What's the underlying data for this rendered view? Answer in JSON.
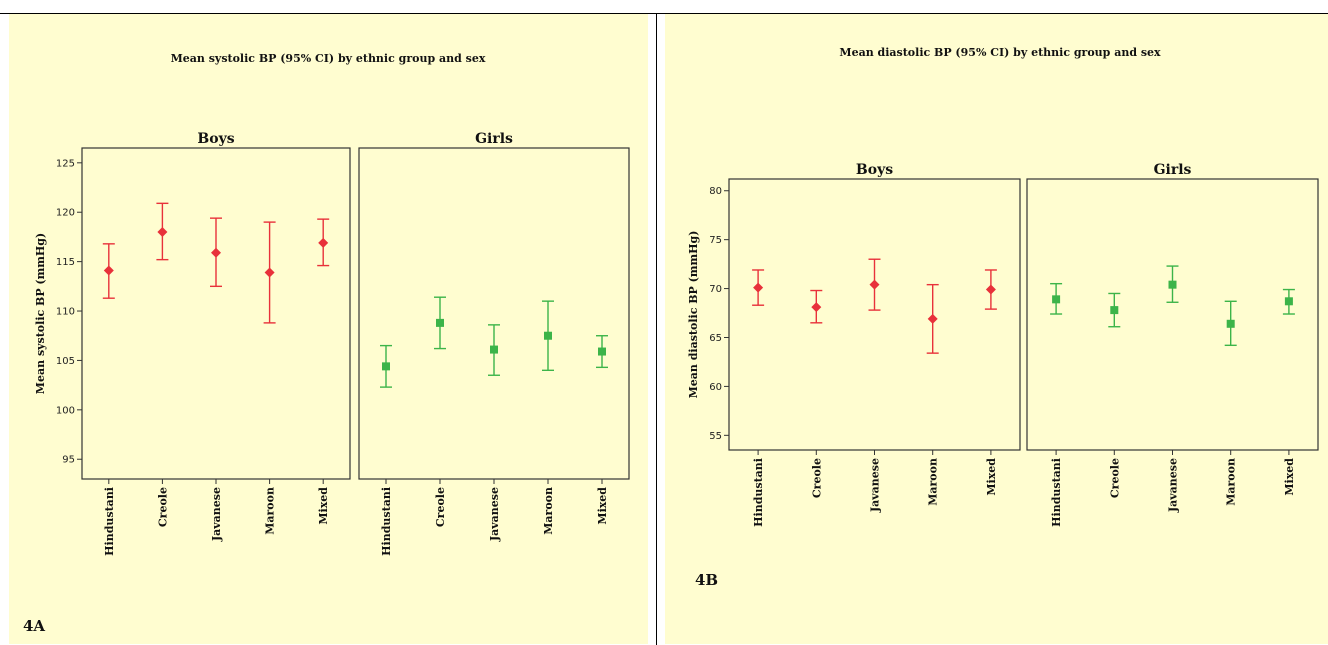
{
  "chart_data": [
    {
      "type": "errorbar",
      "label": "4A",
      "title": "Mean systolic BP (95% CI) by ethnic group and sex",
      "ylabel": "Mean systolic BP (mmHg)",
      "xlabel": "",
      "ylim": [
        93,
        126.5
      ],
      "yticks": [
        95,
        100,
        105,
        110,
        115,
        120,
        125
      ],
      "grid": false,
      "categories": [
        "Hindustani",
        "Creole",
        "Javanese",
        "Maroon",
        "Mixed"
      ],
      "facets": [
        {
          "name": "Boys",
          "color": "#e8313a",
          "marker": "diamond",
          "points": [
            {
              "category": "Hindustani",
              "mean": 114.1,
              "lower": 111.3,
              "upper": 116.8
            },
            {
              "category": "Creole",
              "mean": 118.0,
              "lower": 115.2,
              "upper": 120.9
            },
            {
              "category": "Javanese",
              "mean": 115.9,
              "lower": 112.5,
              "upper": 119.4
            },
            {
              "category": "Maroon",
              "mean": 113.9,
              "lower": 108.8,
              "upper": 119.0
            },
            {
              "category": "Mixed",
              "mean": 116.9,
              "lower": 114.6,
              "upper": 119.3
            }
          ]
        },
        {
          "name": "Girls",
          "color": "#3cb449",
          "marker": "square",
          "points": [
            {
              "category": "Hindustani",
              "mean": 104.4,
              "lower": 102.3,
              "upper": 106.5
            },
            {
              "category": "Creole",
              "mean": 108.8,
              "lower": 106.2,
              "upper": 111.4
            },
            {
              "category": "Javanese",
              "mean": 106.1,
              "lower": 103.5,
              "upper": 108.6
            },
            {
              "category": "Maroon",
              "mean": 107.5,
              "lower": 104.0,
              "upper": 111.0
            },
            {
              "category": "Mixed",
              "mean": 105.9,
              "lower": 104.3,
              "upper": 107.5
            }
          ]
        }
      ]
    },
    {
      "type": "errorbar",
      "label": "4B",
      "title": "Mean diastolic BP (95% CI) by ethnic group and sex",
      "ylabel": "Mean diastolic BP (mmHg)",
      "xlabel": "",
      "ylim": [
        53.5,
        81.2
      ],
      "yticks": [
        55,
        60,
        65,
        70,
        75,
        80
      ],
      "grid": false,
      "categories": [
        "Hindustani",
        "Creole",
        "Javanese",
        "Maroon",
        "Mixed"
      ],
      "facets": [
        {
          "name": "Boys",
          "color": "#e8313a",
          "marker": "diamond",
          "points": [
            {
              "category": "Hindustani",
              "mean": 70.1,
              "lower": 68.3,
              "upper": 71.9
            },
            {
              "category": "Creole",
              "mean": 68.1,
              "lower": 66.5,
              "upper": 69.8
            },
            {
              "category": "Javanese",
              "mean": 70.4,
              "lower": 67.8,
              "upper": 73.0
            },
            {
              "category": "Maroon",
              "mean": 66.9,
              "lower": 63.4,
              "upper": 70.4
            },
            {
              "category": "Mixed",
              "mean": 69.9,
              "lower": 67.9,
              "upper": 71.9
            }
          ]
        },
        {
          "name": "Girls",
          "color": "#3cb449",
          "marker": "square",
          "points": [
            {
              "category": "Hindustani",
              "mean": 68.9,
              "lower": 67.4,
              "upper": 70.5
            },
            {
              "category": "Creole",
              "mean": 67.8,
              "lower": 66.1,
              "upper": 69.5
            },
            {
              "category": "Javanese",
              "mean": 70.4,
              "lower": 68.6,
              "upper": 72.3
            },
            {
              "category": "Maroon",
              "mean": 66.4,
              "lower": 64.2,
              "upper": 68.7
            },
            {
              "category": "Mixed",
              "mean": 68.7,
              "lower": 67.4,
              "upper": 69.9
            }
          ]
        }
      ]
    }
  ],
  "colors": {
    "panel_background": "#fffdd0",
    "frame": "#333333"
  }
}
